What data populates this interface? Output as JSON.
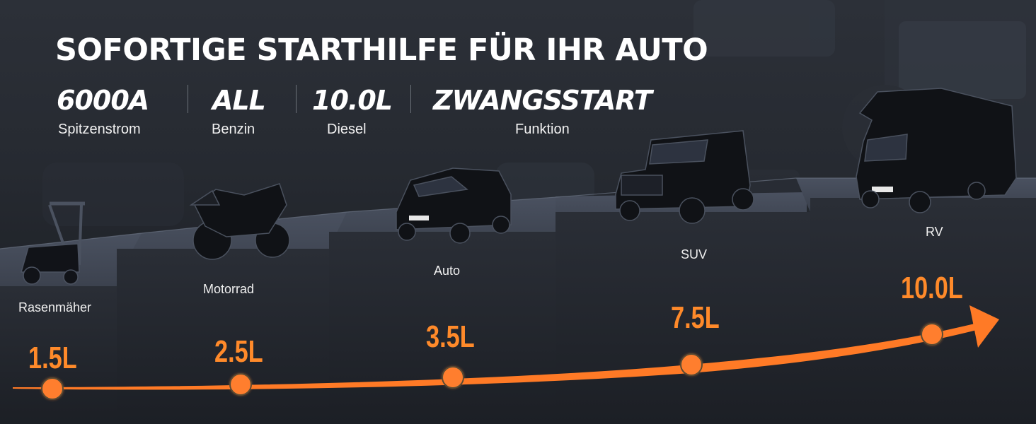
{
  "headline": "SOFORTIGE STARTHILFE FÜR IHR AUTO",
  "specs": [
    {
      "value": "6000A",
      "label": "Spitzenstrom"
    },
    {
      "value": "ALL",
      "label": "Benzin"
    },
    {
      "value": "10.0L",
      "label": "Diesel"
    },
    {
      "value": "ZWANGSSTART",
      "label": "Funktion"
    }
  ],
  "steps": [
    {
      "vehicle": "Rasenmäher",
      "volume": "1.5L",
      "icon": "lawnmower-icon"
    },
    {
      "vehicle": "Motorrad",
      "volume": "2.5L",
      "icon": "motorcycle-icon"
    },
    {
      "vehicle": "Auto",
      "volume": "3.5L",
      "icon": "car-icon"
    },
    {
      "vehicle": "SUV",
      "volume": "7.5L",
      "icon": "suv-icon"
    },
    {
      "vehicle": "RV",
      "volume": "10.0L",
      "icon": "rv-icon"
    }
  ],
  "colors": {
    "accent": "#ff7a26",
    "text": "#ffffff",
    "background": "#1f2228"
  }
}
